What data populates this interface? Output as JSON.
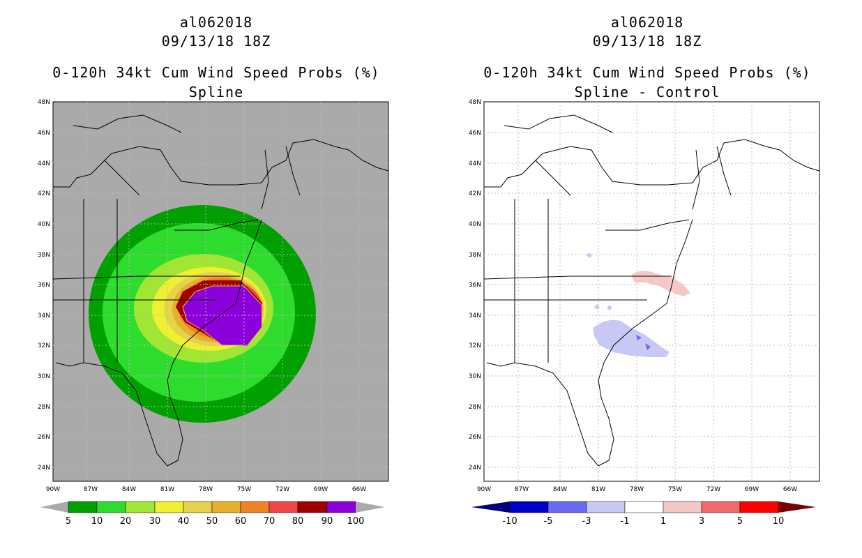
{
  "panels": [
    {
      "storm_id": "al062018",
      "datetime": "09/13/18 18Z",
      "product": "0-120h 34kt Cum Wind Speed Probs (%)",
      "subtitle": "Spline",
      "colorbar_labels": [
        "5",
        "10",
        "20",
        "30",
        "40",
        "50",
        "60",
        "70",
        "80",
        "90",
        "100"
      ],
      "colorbar_colors": [
        "#00a000",
        "#2ddc2d",
        "#a0e632",
        "#f0f032",
        "#e6d24b",
        "#e6af2d",
        "#f08228",
        "#f04646",
        "#a00000",
        "#8c00dc"
      ]
    },
    {
      "storm_id": "al062018",
      "datetime": "09/13/18 18Z",
      "product": "0-120h 34kt Cum Wind Speed Probs (%)",
      "subtitle": "Spline - Control",
      "colorbar_labels": [
        "-10",
        "-5",
        "-3",
        "-1",
        "1",
        "3",
        "5",
        "10"
      ],
      "colorbar_colors": [
        "#0000c8",
        "#6a6af0",
        "#c8c8f5",
        "#ffffff",
        "#f5c8c8",
        "#f06a6a",
        "#ff0000"
      ],
      "colorbar_end_colors": [
        "#000078",
        "#780000"
      ]
    }
  ],
  "axes": {
    "lat_labels": [
      "48N",
      "46N",
      "44N",
      "42N",
      "40N",
      "38N",
      "36N",
      "34N",
      "32N",
      "30N",
      "28N",
      "26N",
      "24N"
    ],
    "lon_labels": [
      "90W",
      "87W",
      "84W",
      "81W",
      "78W",
      "75W",
      "72W",
      "69W",
      "66W"
    ]
  },
  "colors": {
    "land_bg_left": "#aaaaaa",
    "bg_right": "#ffffff",
    "grid": "#bbbbbb"
  }
}
